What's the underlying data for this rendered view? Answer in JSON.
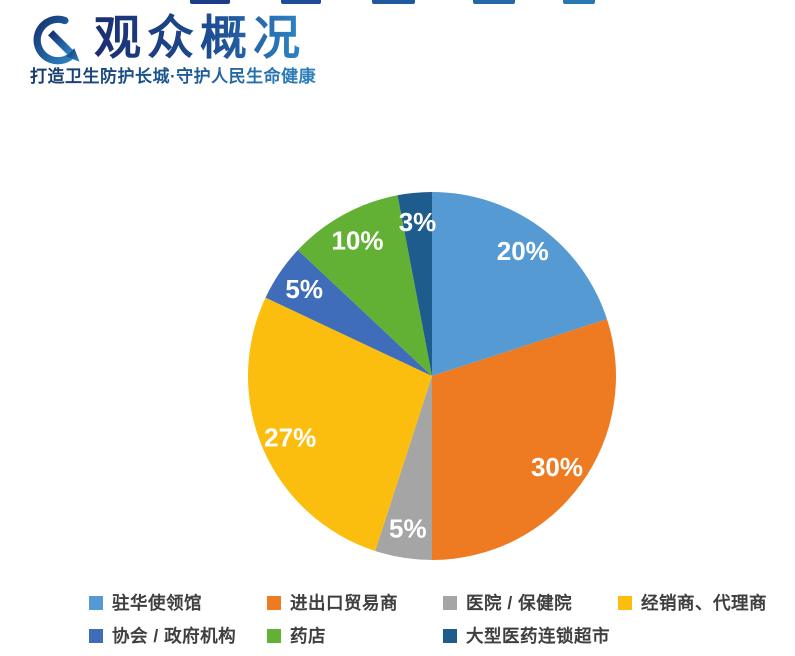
{
  "header": {
    "title": "观众概况",
    "tagline": "打造卫生防护长城·守护人民生命健康",
    "logo_icon": "circular-arrow-icon",
    "title_color_start": "#1B2F72",
    "title_color_end": "#2E86C4"
  },
  "chart_data": {
    "type": "pie",
    "title": "观众概况",
    "start_angle_deg": 0,
    "direction": "clockwise",
    "categories": [
      "驻华使领馆",
      "进出口贸易商",
      "医院 / 保健院",
      "经销商、代理商",
      "协会 / 政府机构",
      "药店",
      "大型医药连锁超市"
    ],
    "values": [
      20,
      30,
      5,
      27,
      5,
      10,
      3
    ],
    "labels": [
      "20%",
      "30%",
      "5%",
      "27%",
      "5%",
      "10%",
      "3%"
    ],
    "colors": [
      "#559AD3",
      "#EE7B22",
      "#A5A5A5",
      "#FBBE0F",
      "#3F6DB9",
      "#63B134",
      "#1F5C8E"
    ],
    "label_color": "#FFFFFF",
    "legend_position": "bottom",
    "legend_rows": 2,
    "legend_text_color": "#3F3F3F"
  }
}
